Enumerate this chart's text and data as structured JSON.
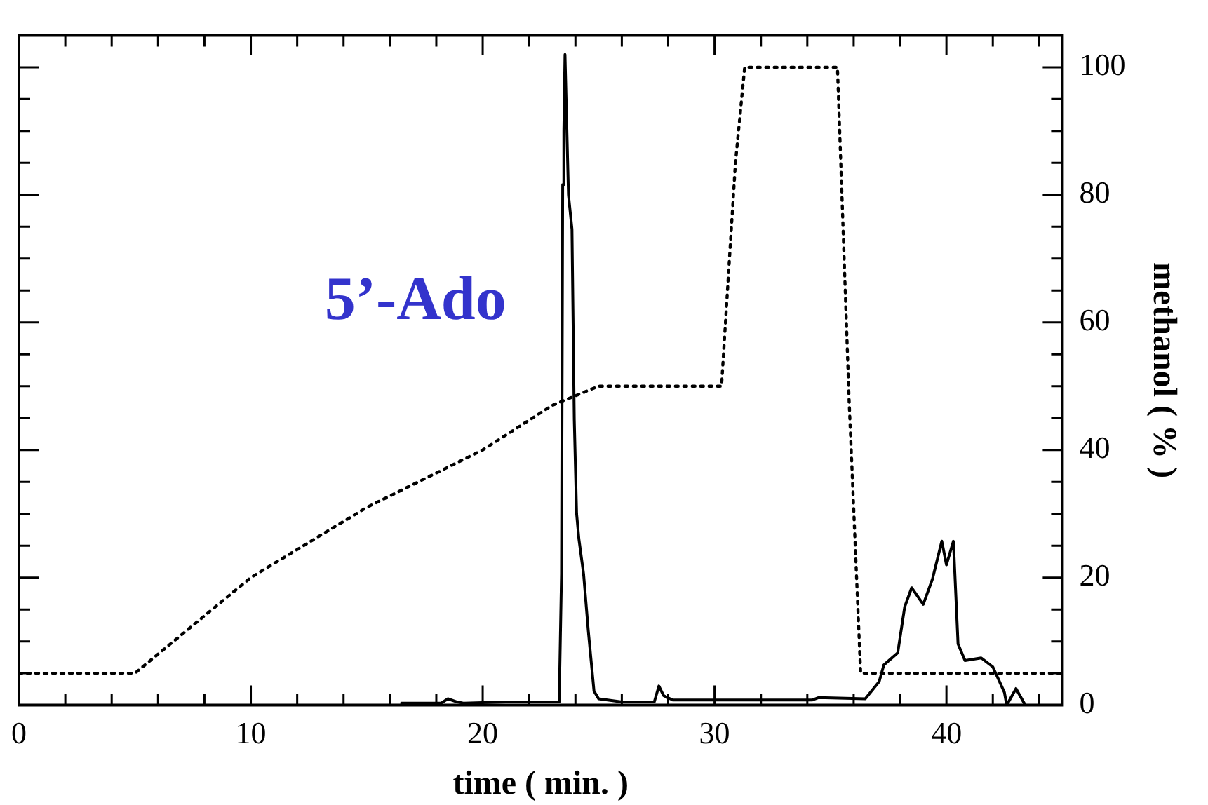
{
  "chart_data": {
    "type": "line",
    "xlabel": "time ( min. )",
    "ylabel": "methanol ( % )",
    "xlim": [
      0,
      45
    ],
    "xticks": [
      0,
      {
        "value": 2,
        "label": null
      },
      {
        "value": 4,
        "label": null
      },
      {
        "value": 6,
        "label": null
      },
      {
        "value": 8,
        "label": null
      },
      10,
      {
        "value": 12,
        "label": null
      },
      {
        "value": 14,
        "label": null
      },
      {
        "value": 16,
        "label": null
      },
      {
        "value": 18,
        "label": null
      },
      20,
      {
        "value": 22,
        "label": null
      },
      {
        "value": 24,
        "label": null
      },
      {
        "value": 26,
        "label": null
      },
      {
        "value": 28,
        "label": null
      },
      30,
      {
        "value": 32,
        "label": null
      },
      {
        "value": 34,
        "label": null
      },
      {
        "value": 36,
        "label": null
      },
      {
        "value": 38,
        "label": null
      },
      40,
      {
        "value": 42,
        "label": null
      },
      {
        "value": 44,
        "label": null
      }
    ],
    "ylim": [
      0,
      105
    ],
    "yticks": [
      0,
      {
        "value": 5,
        "label": null
      },
      {
        "value": 10,
        "label": null
      },
      {
        "value": 15,
        "label": null
      },
      20,
      {
        "value": 25,
        "label": null
      },
      {
        "value": 30,
        "label": null
      },
      {
        "value": 35,
        "label": null
      },
      40,
      {
        "value": 45,
        "label": null
      },
      {
        "value": 50,
        "label": null
      },
      {
        "value": 55,
        "label": null
      },
      60,
      {
        "value": 65,
        "label": null
      },
      {
        "value": 70,
        "label": null
      },
      {
        "value": 75,
        "label": null
      },
      80,
      {
        "value": 85,
        "label": null
      },
      {
        "value": 90,
        "label": null
      },
      {
        "value": 95,
        "label": null
      },
      100
    ],
    "grid": false,
    "legend": false,
    "marker": "none",
    "annotations": [
      "5’-Ado"
    ],
    "series": [
      {
        "color": "#000000",
        "line_style": "solid",
        "x": [
          16.5,
          18.2,
          18.5,
          18.9,
          19.2,
          21,
          23.3,
          23.4,
          23.45,
          23.5,
          23.55,
          23.7,
          23.85,
          23.95,
          24.05,
          24.15,
          24.35,
          24.55,
          24.8,
          25,
          26,
          27.4,
          27.6,
          27.8,
          28.2,
          30,
          34.2,
          34.5,
          36.5,
          37.1,
          37.3,
          37.9,
          38.2,
          38.5,
          39.0,
          39.4,
          39.8,
          40.0,
          40.3,
          40.5,
          40.8,
          41.5,
          42.0,
          42.5,
          42.6,
          43.0,
          43.4
        ],
        "values": [
          0.3,
          0.3,
          1,
          0.5,
          0.3,
          0.5,
          0.5,
          20.6,
          81.6,
          90,
          102,
          80,
          74.6,
          44.7,
          30,
          26,
          20.6,
          11.8,
          2.2,
          1,
          0.5,
          0.5,
          3,
          1.5,
          0.8,
          0.8,
          0.8,
          1.2,
          1,
          3.7,
          6.3,
          8.2,
          15.4,
          18.4,
          15.8,
          19.8,
          25.7,
          22,
          25.7,
          9.6,
          7,
          7.4,
          6,
          2,
          0,
          2.6,
          0
        ]
      },
      {
        "color": "#000000",
        "line_style": "dotted",
        "x": [
          0,
          5,
          10,
          15,
          20,
          23,
          25,
          30,
          30.3,
          30.9,
          31.3,
          35.3,
          35.8,
          36.3,
          45
        ],
        "values": [
          5,
          5,
          20,
          31,
          40,
          47,
          50,
          50,
          50,
          85,
          100,
          100,
          48,
          5,
          5
        ]
      }
    ]
  }
}
